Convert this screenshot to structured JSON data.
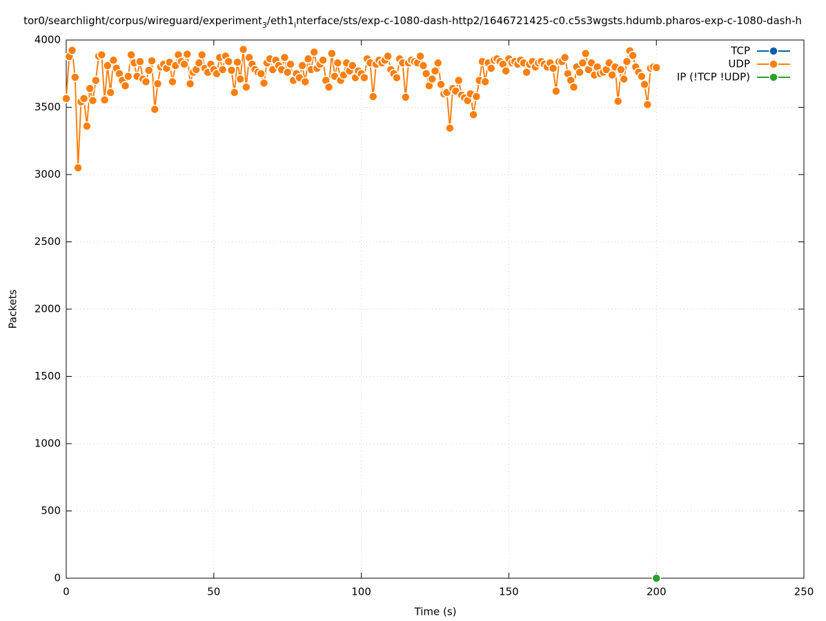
{
  "chart_data": {
    "type": "line",
    "title": [
      {
        "text": "tor0/searchlight/corpus/wireguard/experiment"
      },
      {
        "text": "3",
        "sub": true
      },
      {
        "text": "/eth1"
      },
      {
        "text": "i",
        "sub": true
      },
      {
        "text": "nterface/sts/exp-c-1080-dash-http2/1646721425-c0.c5s3wgsts.hdumb.pharos-exp-c-1080-dash-h"
      }
    ],
    "x_label": "Time (s)",
    "y_label": "Packets",
    "xlim": [
      0,
      250
    ],
    "xticks": [
      0,
      50,
      100,
      150,
      200,
      250
    ],
    "ylim": [
      0,
      4000
    ],
    "yticks": [
      0,
      500,
      1000,
      1500,
      2000,
      2500,
      3000,
      3500,
      4000
    ],
    "grid": true,
    "legend": "top-right",
    "series": [
      {
        "name": "TCP",
        "color": "#0060ad",
        "x": [],
        "values": []
      },
      {
        "name": "UDP",
        "color": "#ff7f0e",
        "x": [
          0,
          1,
          2,
          3,
          4,
          5,
          6,
          7,
          8,
          9,
          10,
          11,
          12,
          13,
          14,
          15,
          16,
          17,
          18,
          19,
          20,
          21,
          22,
          23,
          24,
          25,
          26,
          27,
          28,
          29,
          30,
          31,
          32,
          33,
          34,
          35,
          36,
          37,
          38,
          39,
          40,
          41,
          42,
          43,
          44,
          45,
          46,
          47,
          48,
          49,
          50,
          51,
          52,
          53,
          54,
          55,
          56,
          57,
          58,
          59,
          60,
          61,
          62,
          63,
          64,
          65,
          66,
          67,
          68,
          69,
          70,
          71,
          72,
          73,
          74,
          75,
          76,
          77,
          78,
          79,
          80,
          81,
          82,
          83,
          84,
          85,
          86,
          87,
          88,
          89,
          90,
          91,
          92,
          93,
          94,
          95,
          96,
          97,
          98,
          99,
          100,
          101,
          102,
          103,
          104,
          105,
          106,
          107,
          108,
          109,
          110,
          111,
          112,
          113,
          114,
          115,
          116,
          117,
          118,
          119,
          120,
          121,
          122,
          123,
          124,
          125,
          126,
          127,
          128,
          129,
          130,
          131,
          132,
          133,
          134,
          135,
          136,
          137,
          138,
          139,
          140,
          141,
          142,
          143,
          144,
          145,
          146,
          147,
          148,
          149,
          150,
          151,
          152,
          153,
          154,
          155,
          156,
          157,
          158,
          159,
          160,
          161,
          162,
          163,
          164,
          165,
          166,
          167,
          168,
          169,
          170,
          171,
          172,
          173,
          174,
          175,
          176,
          177,
          178,
          179,
          180,
          181,
          182,
          183,
          184,
          185,
          186,
          187,
          188,
          189,
          190,
          191,
          192,
          193,
          194,
          195,
          196,
          197,
          198,
          199,
          200
        ],
        "values": [
          3565,
          3877,
          3923,
          3723,
          3050,
          3540,
          3565,
          3360,
          3640,
          3550,
          3700,
          3880,
          3890,
          3555,
          3810,
          3610,
          3850,
          3790,
          3750,
          3700,
          3660,
          3730,
          3890,
          3830,
          3730,
          3840,
          3710,
          3690,
          3775,
          3845,
          3485,
          3675,
          3800,
          3820,
          3790,
          3835,
          3690,
          3810,
          3890,
          3840,
          3820,
          3895,
          3675,
          3760,
          3780,
          3830,
          3890,
          3790,
          3760,
          3820,
          3780,
          3750,
          3870,
          3780,
          3880,
          3840,
          3775,
          3610,
          3835,
          3710,
          3930,
          3650,
          3870,
          3820,
          3780,
          3760,
          3750,
          3680,
          3830,
          3860,
          3780,
          3850,
          3810,
          3780,
          3870,
          3760,
          3820,
          3700,
          3750,
          3720,
          3810,
          3690,
          3860,
          3780,
          3910,
          3790,
          3820,
          3850,
          3700,
          3650,
          3900,
          3730,
          3830,
          3700,
          3740,
          3830,
          3770,
          3810,
          3720,
          3770,
          3750,
          3720,
          3860,
          3830,
          3580,
          3820,
          3850,
          3830,
          3850,
          3880,
          3780,
          3750,
          3720,
          3860,
          3830,
          3575,
          3830,
          3850,
          3840,
          3830,
          3880,
          3810,
          3750,
          3660,
          3710,
          3770,
          3830,
          3670,
          3600,
          3610,
          3345,
          3640,
          3620,
          3700,
          3590,
          3570,
          3550,
          3600,
          3445,
          3580,
          3700,
          3840,
          3690,
          3830,
          3790,
          3850,
          3860,
          3840,
          3820,
          3770,
          3860,
          3830,
          3840,
          3820,
          3850,
          3830,
          3760,
          3820,
          3840,
          3800,
          3830,
          3840,
          3820,
          3800,
          3830,
          3790,
          3620,
          3840,
          3840,
          3870,
          3750,
          3700,
          3650,
          3800,
          3760,
          3830,
          3900,
          3780,
          3830,
          3740,
          3800,
          3750,
          3760,
          3780,
          3830,
          3740,
          3800,
          3545,
          3780,
          3710,
          3840,
          3920,
          3885,
          3800,
          3760,
          3730,
          3670,
          3520,
          3790,
          3800,
          3795
        ]
      },
      {
        "name": "IP (!TCP  !UDP)",
        "color": "#2ca02c",
        "x": [
          200
        ],
        "values": [
          0
        ]
      }
    ]
  }
}
